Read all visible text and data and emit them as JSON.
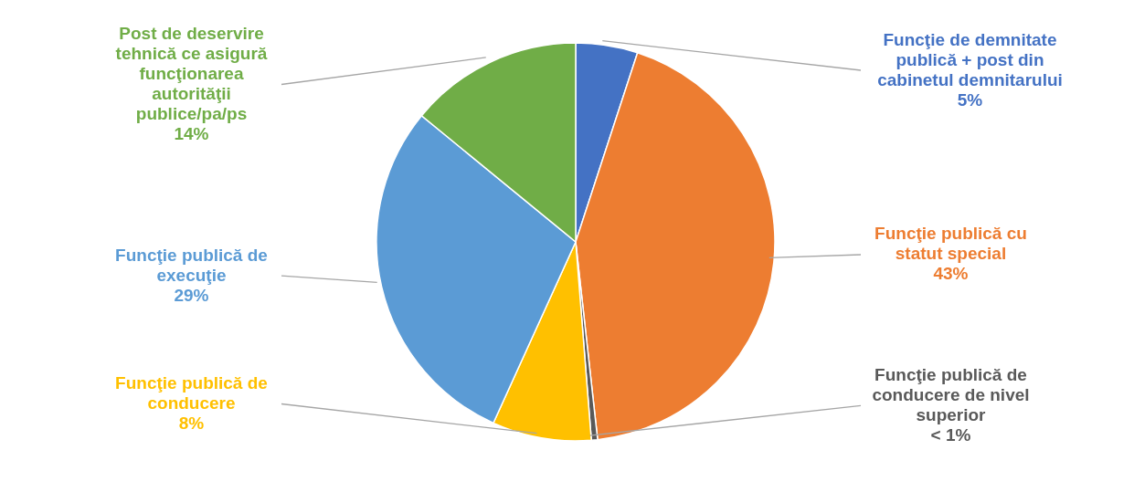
{
  "chart_data": {
    "type": "pie",
    "categories": [
      "Funcţie de demnitate publică + post din cabinetul demnitarului",
      "Funcţie publică cu statut special",
      "Funcţie publică de conducere de nivel superior",
      "Funcţie publică de conducere",
      "Funcţie publică de execuţie",
      "Post de deservire tehnică ce asigură funcţionarea autorităţii publice/pa/ps"
    ],
    "values": [
      5,
      43,
      0.5,
      8,
      29,
      14
    ],
    "value_labels": [
      "5%",
      "43%",
      "< 1%",
      "8%",
      "29%",
      "14%"
    ],
    "colors": [
      "#4472c4",
      "#ed7d31",
      "#595959",
      "#ffc000",
      "#5b9bd5",
      "#70ad47"
    ]
  }
}
